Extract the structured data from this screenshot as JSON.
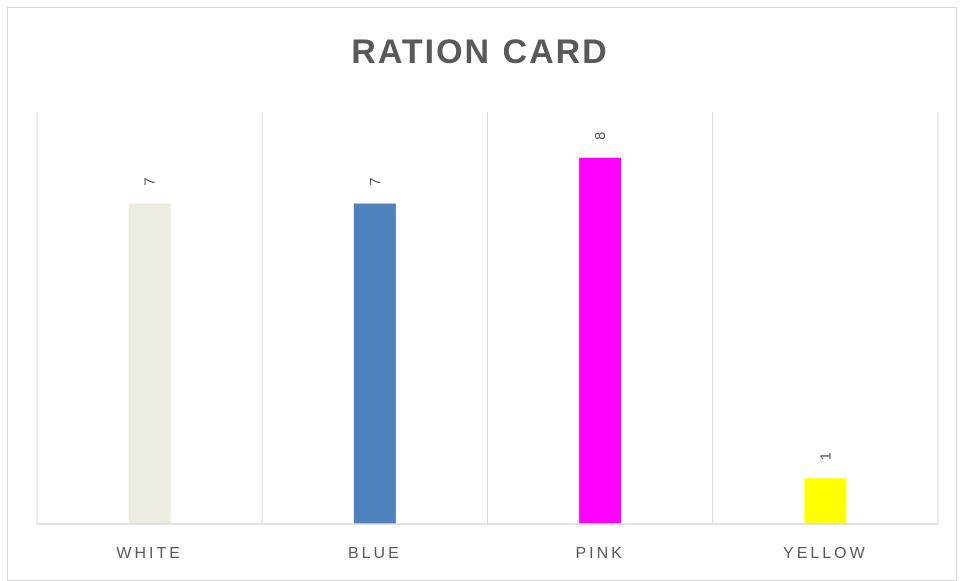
{
  "chart_data": {
    "type": "bar",
    "title": "RATION CARD",
    "categories": [
      "WHITE",
      "BLUE",
      "PINK",
      "YELLOW"
    ],
    "values": [
      7,
      7,
      8,
      1
    ],
    "data_labels": [
      "7",
      "7",
      "8",
      "1"
    ],
    "bar_colors": [
      "#EEEBE1",
      "#4F81BD",
      "#FF00FF",
      "#FFFF00"
    ],
    "xlabel": "",
    "ylabel": "",
    "ylim": [
      0,
      9
    ],
    "grid": "vertical category separators",
    "legend": "none"
  }
}
